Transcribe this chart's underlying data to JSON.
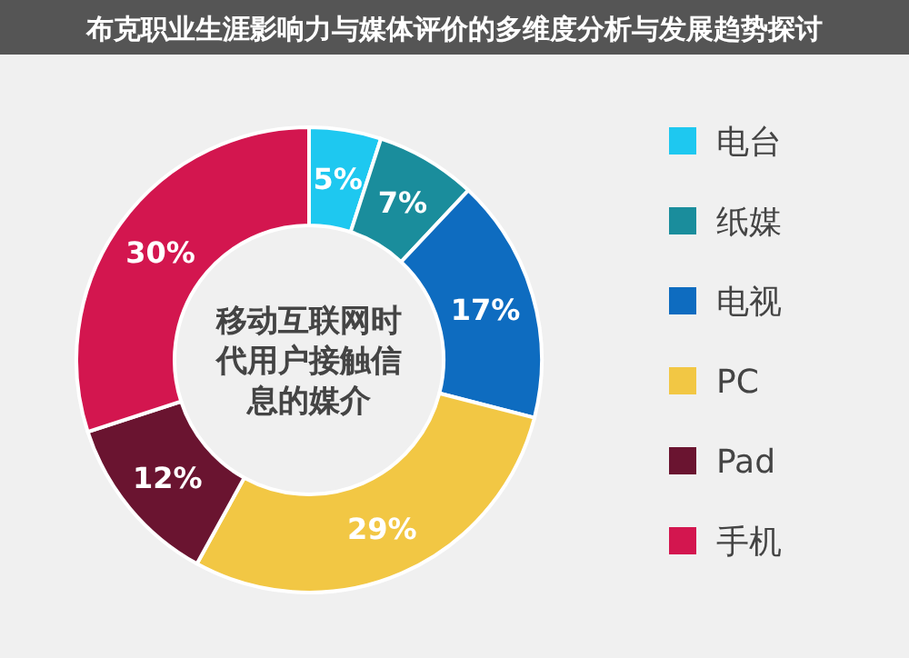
{
  "chart_data": {
    "type": "donut",
    "title": "布克职业生涯影响力与媒体评价的多维度分析与发展趋势探讨",
    "annotations": [
      "移动互联网时代用户接触信息的媒介"
    ],
    "categories": [
      "电台",
      "纸媒",
      "电视",
      "PC",
      "Pad",
      "手机"
    ],
    "values": [
      5,
      7,
      17,
      29,
      12,
      30
    ],
    "value_labels": [
      "5%",
      "7%",
      "17%",
      "29%",
      "12%",
      "30%"
    ],
    "colors": [
      "#1ec8f0",
      "#1a8d9c",
      "#0e6cc0",
      "#f2c744",
      "#6a1430",
      "#d3164f"
    ],
    "legend": "right"
  }
}
